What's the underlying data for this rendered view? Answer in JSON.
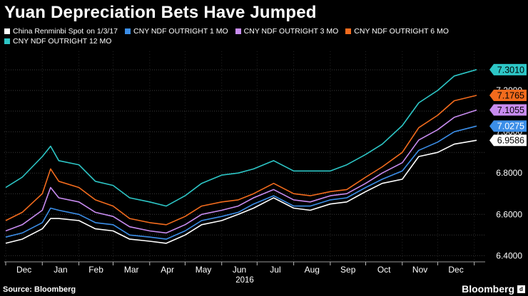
{
  "header": {
    "title": "Yuan Depreciation Bets Have Jumped"
  },
  "footer": {
    "source": "Source: Bloomberg",
    "brand": "Bloomberg",
    "brand_badge": "d"
  },
  "chart_data": {
    "type": "line",
    "title": "Yuan Depreciation Bets Have Jumped",
    "xlabel": "2016",
    "ylabel": "",
    "x": [
      "2015-12-01",
      "2015-12-15",
      "2016-01-01",
      "2016-01-08",
      "2016-01-15",
      "2016-02-01",
      "2016-02-15",
      "2016-03-01",
      "2016-03-15",
      "2016-04-01",
      "2016-04-15",
      "2016-05-01",
      "2016-05-15",
      "2016-06-01",
      "2016-06-15",
      "2016-06-28",
      "2016-07-15",
      "2016-08-01",
      "2016-08-15",
      "2016-09-01",
      "2016-09-15",
      "2016-10-01",
      "2016-10-15",
      "2016-11-01",
      "2016-11-15",
      "2016-12-01",
      "2016-12-15",
      "2017-01-03"
    ],
    "x_ticks": [
      "Dec",
      "Jan",
      "Feb",
      "Mar",
      "Apr",
      "May",
      "Jun",
      "Jul",
      "Aug",
      "Sep",
      "Oct",
      "Nov",
      "Dec"
    ],
    "y_ticks": [
      6.4,
      6.6,
      6.8,
      7.0,
      7.2
    ],
    "y_tick_labels": [
      "6.4000",
      "6.6000",
      "6.8000",
      "7.0000",
      "7.2000"
    ],
    "ylim": [
      6.37,
      7.39
    ],
    "grid": true,
    "legend_position": "top-left",
    "series": [
      {
        "name": "China Renminbi Spot",
        "name_suffix": "on 1/3/17",
        "color": "#ffffff",
        "end_label": "6.9586",
        "end_label_text": "#000000",
        "values": [
          6.46,
          6.48,
          6.53,
          6.58,
          6.58,
          6.57,
          6.53,
          6.52,
          6.48,
          6.47,
          6.46,
          6.5,
          6.55,
          6.57,
          6.6,
          6.63,
          6.68,
          6.63,
          6.62,
          6.65,
          6.66,
          6.71,
          6.75,
          6.77,
          6.88,
          6.9,
          6.94,
          6.9586
        ]
      },
      {
        "name": "CNY NDF OUTRIGHT 1 MO",
        "color": "#3b8ee8",
        "end_label": "7.0275",
        "end_label_text": "#ffffff",
        "values": [
          6.49,
          6.51,
          6.56,
          6.63,
          6.62,
          6.6,
          6.56,
          6.55,
          6.5,
          6.49,
          6.48,
          6.52,
          6.57,
          6.59,
          6.61,
          6.65,
          6.69,
          6.64,
          6.64,
          6.67,
          6.68,
          6.73,
          6.77,
          6.81,
          6.91,
          6.95,
          7.0,
          7.0275
        ]
      },
      {
        "name": "CNY NDF OUTRIGHT 3 MO",
        "color": "#c88cf0",
        "end_label": "7.1055",
        "end_label_text": "#000000",
        "values": [
          6.52,
          6.55,
          6.62,
          6.73,
          6.68,
          6.66,
          6.61,
          6.59,
          6.54,
          6.52,
          6.51,
          6.55,
          6.6,
          6.62,
          6.64,
          6.68,
          6.72,
          6.67,
          6.66,
          6.69,
          6.7,
          6.75,
          6.8,
          6.85,
          6.96,
          7.01,
          7.07,
          7.1055
        ]
      },
      {
        "name": "CNY NDF OUTRIGHT 6 MO",
        "color": "#f26b1d",
        "end_label": "7.1765",
        "end_label_text": "#000000",
        "values": [
          6.57,
          6.61,
          6.7,
          6.82,
          6.76,
          6.73,
          6.67,
          6.64,
          6.58,
          6.56,
          6.55,
          6.59,
          6.64,
          6.66,
          6.67,
          6.7,
          6.75,
          6.7,
          6.69,
          6.71,
          6.72,
          6.78,
          6.83,
          6.9,
          7.02,
          7.08,
          7.15,
          7.1765
        ]
      },
      {
        "name": "CNY NDF OUTRIGHT 12 MO",
        "color": "#2dc6c6",
        "end_label": "7.3010",
        "end_label_text": "#000000",
        "values": [
          6.73,
          6.78,
          6.88,
          6.93,
          6.86,
          6.84,
          6.76,
          6.74,
          6.68,
          6.66,
          6.64,
          6.69,
          6.75,
          6.79,
          6.8,
          6.82,
          6.86,
          6.81,
          6.81,
          6.81,
          6.84,
          6.89,
          6.94,
          7.03,
          7.14,
          7.2,
          7.27,
          7.301
        ]
      }
    ]
  }
}
